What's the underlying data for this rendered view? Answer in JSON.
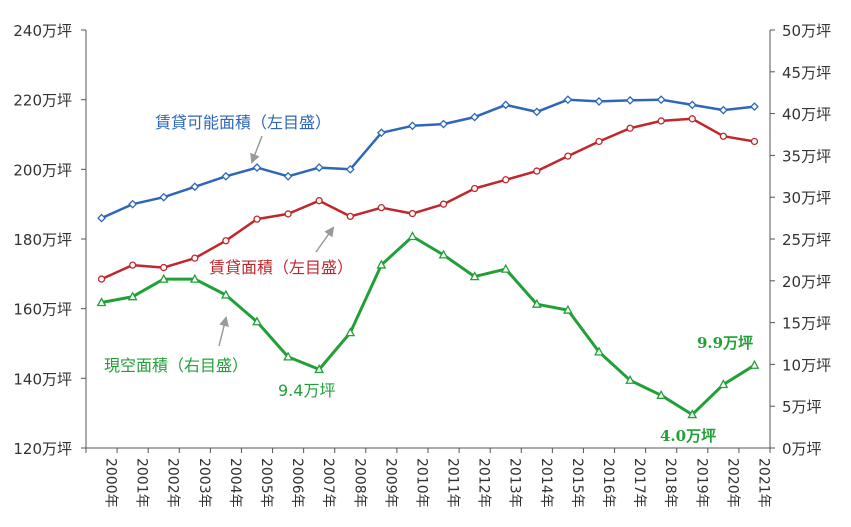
{
  "chart_data": {
    "type": "line",
    "categories": [
      "2000年",
      "2001年",
      "2002年",
      "2003年",
      "2004年",
      "2005年",
      "2006年",
      "2007年",
      "2008年",
      "2009年",
      "2010年",
      "2011年",
      "2012年",
      "2013年",
      "2014年",
      "2015年",
      "2016年",
      "2017年",
      "2018年",
      "2019年",
      "2020年",
      "2021年"
    ],
    "series": [
      {
        "name": "賃貸可能面積（左目盛）",
        "axis": "left",
        "color": "#2e67b9",
        "marker": "diamond",
        "values": [
          186,
          190,
          192,
          195,
          198,
          200.5,
          198,
          200.5,
          200,
          210.5,
          212.5,
          213,
          215,
          218.5,
          216.5,
          220,
          219.5,
          219.8,
          220,
          218.5,
          217,
          218
        ]
      },
      {
        "name": "賃貸面積（左目盛）",
        "axis": "left",
        "color": "#c0272d",
        "marker": "circle",
        "values": [
          168.5,
          172.5,
          171.8,
          174.5,
          179.5,
          185.7,
          187.2,
          191,
          186.5,
          189,
          187.3,
          190,
          194.5,
          197,
          199.5,
          203.8,
          208,
          211.8,
          213.9,
          214.5,
          209.5,
          208
        ]
      },
      {
        "name": "現空面積（右目盛）",
        "axis": "right",
        "color": "#21a038",
        "marker": "triangle",
        "values": [
          17.4,
          18.1,
          20.2,
          20.2,
          18.3,
          15.1,
          10.9,
          9.4,
          13.8,
          21.9,
          25.3,
          23.1,
          20.5,
          21.4,
          17.2,
          16.5,
          11.5,
          8.1,
          6.3,
          4.0,
          7.6,
          9.9
        ]
      }
    ],
    "left_axis": {
      "ylim": [
        120,
        240
      ],
      "ticks": [
        120,
        140,
        160,
        180,
        200,
        220,
        240
      ],
      "unit": "万坪"
    },
    "right_axis": {
      "ylim": [
        0,
        50
      ],
      "ticks": [
        0,
        5,
        10,
        15,
        20,
        25,
        30,
        35,
        40,
        45,
        50
      ],
      "unit": "万坪"
    },
    "annotations": {
      "available_label": "賃貸可能面積（左目盛）",
      "leased_label": "賃貸面積（左目盛）",
      "vacant_label": "現空面積（右目盛）",
      "point_2007": "9.4万坪",
      "point_2019": "4.0万坪",
      "point_2021": "9.9万坪"
    },
    "colors": {
      "available": "#2e67b9",
      "leased": "#c0272d",
      "vacant": "#21a038",
      "arrow": "#9a9a9a",
      "axis": "#555555"
    }
  }
}
